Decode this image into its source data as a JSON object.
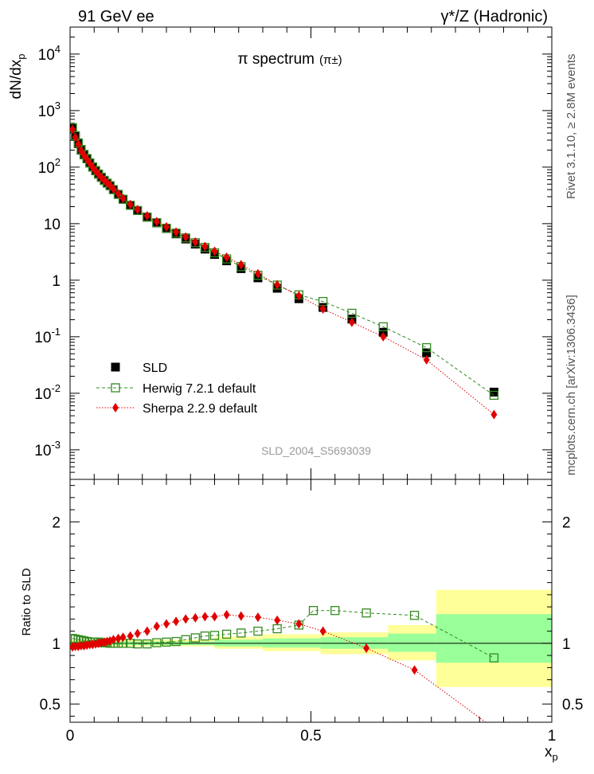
{
  "header": {
    "left": "91 GeV ee",
    "right": "γ*/Z (Hadronic)",
    "side_top": "Rivet 3.1.10, ≥ 2.8M events",
    "side_bottom": "mcplots.cern.ch [arXiv:1306.3436]"
  },
  "chart_data": [
    {
      "type": "scatter",
      "title": "π spectrum",
      "title_sup": "(π±)",
      "ylabel": "dN/dx_p",
      "yscale": "log",
      "ylim": [
        0.0003,
        30000
      ],
      "xlim": [
        0,
        1
      ],
      "watermark": "SLD_2004_S5693039",
      "y_tick_labels": [
        "10^-3",
        "10^-2",
        "10^-1",
        "1",
        "10",
        "10^2",
        "10^3",
        "10^4"
      ],
      "x": [
        0.005,
        0.011,
        0.017,
        0.023,
        0.029,
        0.035,
        0.041,
        0.047,
        0.053,
        0.059,
        0.065,
        0.071,
        0.077,
        0.083,
        0.09,
        0.1,
        0.11,
        0.125,
        0.14,
        0.16,
        0.18,
        0.2,
        0.22,
        0.24,
        0.26,
        0.28,
        0.3,
        0.325,
        0.355,
        0.39,
        0.43,
        0.475,
        0.525,
        0.585,
        0.65,
        0.74,
        0.88
      ],
      "series": [
        {
          "name": "SLD",
          "color": "#000000",
          "marker": "filled-square",
          "values": [
            480,
            350,
            260,
            200,
            165,
            140,
            118,
            100,
            86,
            75,
            66,
            58,
            52,
            47,
            40,
            33,
            27,
            21,
            17,
            13,
            10.3,
            8.2,
            6.6,
            5.35,
            4.35,
            3.55,
            2.85,
            2.2,
            1.6,
            1.1,
            0.72,
            0.47,
            0.33,
            0.205,
            0.12,
            0.052,
            0.0105
          ]
        },
        {
          "name": "Herwig 7.2.1 default",
          "color": "#338a1f",
          "marker": "open-square",
          "line": "dashed",
          "values": [
            500,
            360,
            268,
            205,
            168,
            142,
            119,
            101,
            87,
            75.5,
            66.3,
            58.3,
            52.1,
            47,
            40,
            33,
            27,
            21.1,
            17.1,
            13.1,
            10.4,
            8.3,
            6.8,
            5.6,
            4.6,
            3.8,
            3.05,
            2.38,
            1.74,
            1.22,
            0.82,
            0.55,
            0.42,
            0.26,
            0.15,
            0.064,
            0.0092
          ]
        },
        {
          "name": "Sherpa 2.2.9 default",
          "color": "#e00000",
          "marker": "filled-diamond",
          "line": "dotted",
          "values": [
            465,
            338,
            254,
            195,
            162,
            138,
            116,
            99,
            85.5,
            75,
            66,
            58.5,
            52.6,
            47.8,
            40.8,
            33.9,
            28,
            21.9,
            17.8,
            13.8,
            10.9,
            8.8,
            7.1,
            5.8,
            4.75,
            3.95,
            3.25,
            2.55,
            1.88,
            1.3,
            0.83,
            0.53,
            0.31,
            0.18,
            0.1,
            0.039,
            0.0042
          ]
        }
      ]
    },
    {
      "type": "scatter",
      "ylabel": "Ratio to SLD",
      "xlabel": "x_p",
      "ylim": [
        0.35,
        2.35
      ],
      "xlim": [
        0,
        1
      ],
      "y_tick_labels": [
        "0.5",
        "1",
        "2"
      ],
      "x_tick_labels": [
        "0",
        "0.5",
        "1"
      ],
      "bands": {
        "x_edges": [
          0,
          0.3,
          0.4,
          0.52,
          0.66,
          0.76,
          1.0
        ],
        "inner": [
          [
            0.985,
            1.015
          ],
          [
            0.975,
            1.03
          ],
          [
            0.965,
            1.04
          ],
          [
            0.955,
            1.05
          ],
          [
            0.93,
            1.08
          ],
          [
            0.84,
            1.24
          ]
        ],
        "outer": [
          [
            0.975,
            1.03
          ],
          [
            0.955,
            1.055
          ],
          [
            0.935,
            1.075
          ],
          [
            0.91,
            1.09
          ],
          [
            0.86,
            1.15
          ],
          [
            0.64,
            1.44
          ]
        ]
      },
      "series": [
        {
          "name": "Herwig 7.2.1 default",
          "color": "#338a1f",
          "marker": "open-square",
          "line": "dashed",
          "x": [
            0.005,
            0.011,
            0.017,
            0.023,
            0.029,
            0.035,
            0.041,
            0.047,
            0.053,
            0.059,
            0.065,
            0.071,
            0.077,
            0.083,
            0.09,
            0.1,
            0.11,
            0.125,
            0.14,
            0.16,
            0.18,
            0.2,
            0.22,
            0.24,
            0.26,
            0.28,
            0.3,
            0.325,
            0.355,
            0.39,
            0.43,
            0.475,
            0.505,
            0.55,
            0.615,
            0.715,
            0.88
          ],
          "values": [
            1.04,
            1.035,
            1.03,
            1.025,
            1.02,
            1.015,
            1.01,
            1.01,
            1.01,
            1.01,
            1.005,
            1.005,
            1.005,
            1.0,
            1.0,
            1.0,
            1.0,
            1.0,
            0.995,
            0.995,
            1.005,
            1.01,
            1.015,
            1.03,
            1.045,
            1.06,
            1.065,
            1.075,
            1.085,
            1.1,
            1.12,
            1.15,
            1.27,
            1.27,
            1.25,
            1.23,
            0.88
          ]
        },
        {
          "name": "Sherpa 2.2.9 default",
          "color": "#e00000",
          "marker": "filled-diamond",
          "line": "dotted",
          "x": [
            0.005,
            0.011,
            0.017,
            0.023,
            0.029,
            0.035,
            0.041,
            0.047,
            0.053,
            0.059,
            0.065,
            0.071,
            0.077,
            0.083,
            0.09,
            0.1,
            0.11,
            0.125,
            0.14,
            0.16,
            0.18,
            0.2,
            0.22,
            0.24,
            0.26,
            0.28,
            0.3,
            0.325,
            0.355,
            0.39,
            0.43,
            0.475,
            0.525,
            0.615,
            0.715,
            0.88
          ],
          "values": [
            0.97,
            0.975,
            0.975,
            0.98,
            0.98,
            0.985,
            0.99,
            0.99,
            0.995,
            1.0,
            1.005,
            1.01,
            1.015,
            1.02,
            1.03,
            1.04,
            1.05,
            1.06,
            1.08,
            1.1,
            1.14,
            1.16,
            1.18,
            1.2,
            1.21,
            1.22,
            1.22,
            1.235,
            1.225,
            1.215,
            1.19,
            1.16,
            1.1,
            0.96,
            0.78,
            0.3
          ]
        }
      ]
    }
  ]
}
